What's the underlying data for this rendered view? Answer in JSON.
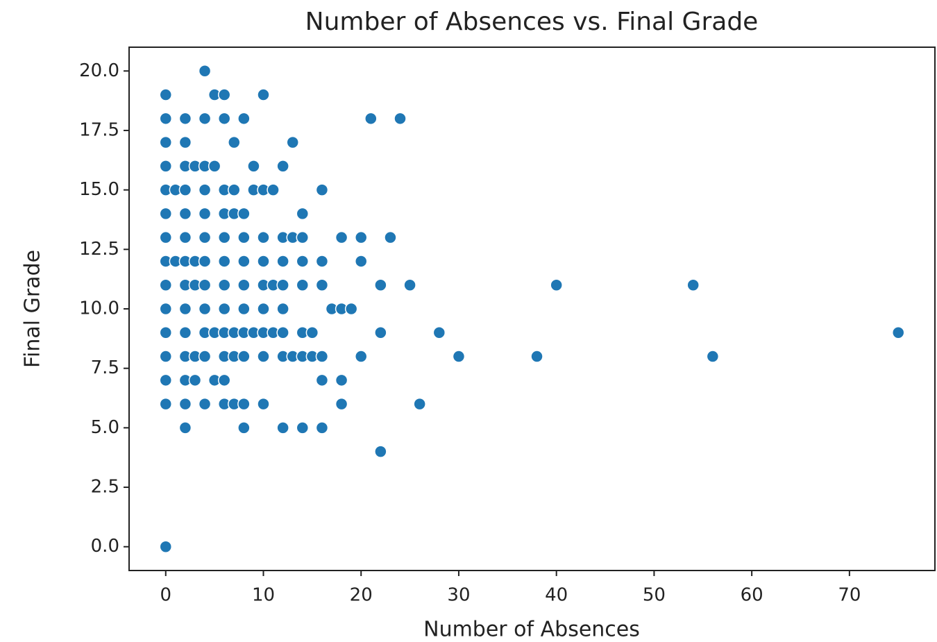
{
  "chart_data": {
    "type": "scatter",
    "title": "Number of Absences vs. Final Grade",
    "x_label": "Number of Absences",
    "y_label": "Final Grade",
    "color": "#1f77b4",
    "x": [
      4,
      0,
      5,
      6,
      10,
      0,
      2,
      4,
      6,
      8,
      21,
      24,
      0,
      2,
      7,
      13,
      0,
      2,
      3,
      4,
      5,
      9,
      12,
      0,
      1,
      2,
      4,
      6,
      7,
      9,
      10,
      11,
      16,
      0,
      2,
      4,
      6,
      7,
      8,
      14,
      0,
      2,
      4,
      6,
      8,
      10,
      12,
      13,
      14,
      18,
      20,
      23,
      0,
      1,
      2,
      3,
      4,
      6,
      8,
      10,
      12,
      14,
      16,
      20,
      0,
      2,
      3,
      4,
      6,
      8,
      10,
      11,
      12,
      14,
      16,
      22,
      25,
      40,
      54,
      0,
      2,
      4,
      6,
      8,
      10,
      12,
      17,
      18,
      19,
      0,
      2,
      4,
      5,
      6,
      7,
      8,
      9,
      10,
      11,
      12,
      14,
      15,
      22,
      28,
      75,
      0,
      2,
      3,
      4,
      6,
      7,
      8,
      10,
      12,
      13,
      14,
      15,
      16,
      20,
      30,
      38,
      56,
      0,
      2,
      3,
      5,
      6,
      16,
      18,
      0,
      2,
      4,
      6,
      7,
      8,
      10,
      18,
      26,
      2,
      8,
      12,
      14,
      16,
      22,
      0
    ],
    "values": [
      20,
      19,
      19,
      19,
      19,
      18,
      18,
      18,
      18,
      18,
      18,
      18,
      17,
      17,
      17,
      17,
      16,
      16,
      16,
      16,
      16,
      16,
      16,
      15,
      15,
      15,
      15,
      15,
      15,
      15,
      15,
      15,
      15,
      14,
      14,
      14,
      14,
      14,
      14,
      14,
      13,
      13,
      13,
      13,
      13,
      13,
      13,
      13,
      13,
      13,
      13,
      13,
      12,
      12,
      12,
      12,
      12,
      12,
      12,
      12,
      12,
      12,
      12,
      12,
      11,
      11,
      11,
      11,
      11,
      11,
      11,
      11,
      11,
      11,
      11,
      11,
      11,
      11,
      11,
      10,
      10,
      10,
      10,
      10,
      10,
      10,
      10,
      10,
      10,
      9,
      9,
      9,
      9,
      9,
      9,
      9,
      9,
      9,
      9,
      9,
      9,
      9,
      9,
      9,
      9,
      8,
      8,
      8,
      8,
      8,
      8,
      8,
      8,
      8,
      8,
      8,
      8,
      8,
      8,
      8,
      8,
      8,
      7,
      7,
      7,
      7,
      7,
      7,
      7,
      6,
      6,
      6,
      6,
      6,
      6,
      6,
      6,
      6,
      5,
      5,
      5,
      5,
      5,
      4,
      0
    ],
    "xlim": [
      -3.75,
      78.75
    ],
    "ylim": [
      -1,
      21
    ],
    "xticks": [
      0,
      10,
      20,
      30,
      40,
      50,
      60,
      70
    ],
    "yticks": [
      {
        "value": 0,
        "label": "0.0"
      },
      2.5,
      {
        "value": 5,
        "label": "5.0"
      },
      7.5,
      {
        "value": 10,
        "label": "10.0"
      },
      12.5,
      {
        "value": 15,
        "label": "15.0"
      },
      17.5,
      {
        "value": 20,
        "label": "20.0"
      }
    ]
  }
}
